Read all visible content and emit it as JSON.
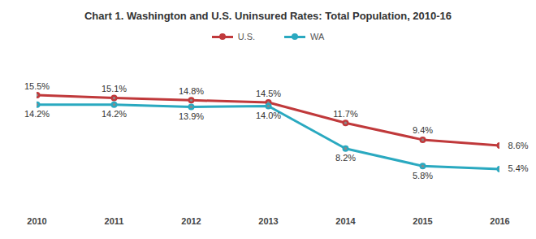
{
  "chart_data": {
    "type": "line",
    "title": "Chart 1. Washington and U.S. Uninsured Rates: Total Population, 2010-16",
    "categories": [
      "2010",
      "2011",
      "2012",
      "2013",
      "2014",
      "2015",
      "2016"
    ],
    "series": [
      {
        "name": "U.S.",
        "color": "#c0393b",
        "marker": "circle",
        "values": [
          15.5,
          15.1,
          14.8,
          14.5,
          11.7,
          9.4,
          8.6
        ],
        "value_labels": [
          "15.5%",
          "15.1%",
          "14.8%",
          "14.5%",
          "11.7%",
          "9.4%",
          "8.6%"
        ]
      },
      {
        "name": "WA",
        "color": "#2aa9c0",
        "marker": "circle",
        "values": [
          14.2,
          14.2,
          13.9,
          14.0,
          8.2,
          5.8,
          5.4
        ],
        "value_labels": [
          "14.2%",
          "14.2%",
          "13.9%",
          "14.0%",
          "8.2%",
          "5.8%",
          "5.4%"
        ]
      }
    ],
    "ylim": [
      0,
      20
    ],
    "tick_labels": "x",
    "data_labels": true,
    "legend": "top",
    "grid": false
  }
}
